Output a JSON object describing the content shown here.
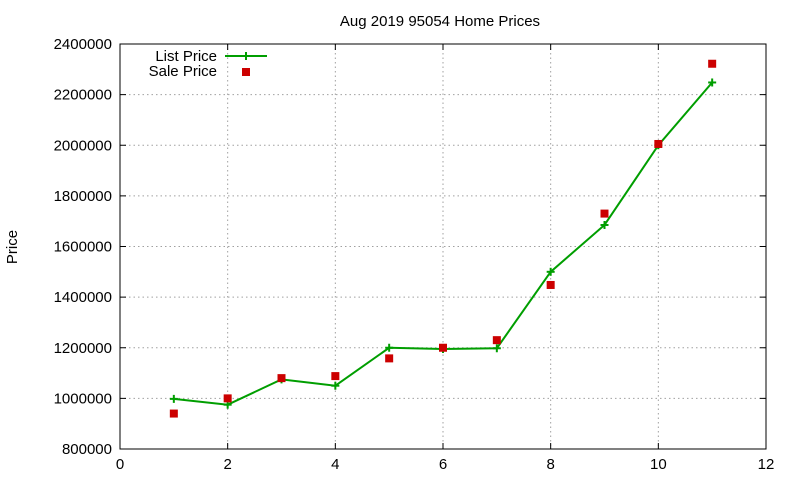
{
  "chart_data": {
    "type": "line",
    "title": "Aug 2019 95054 Home Prices",
    "xlabel": "",
    "ylabel": "Price",
    "xlim": [
      0,
      12
    ],
    "ylim": [
      800000,
      2400000
    ],
    "x_ticks": [
      "0",
      "2",
      "4",
      "6",
      "8",
      "10",
      "12"
    ],
    "y_ticks": [
      "800000",
      "1000000",
      "1200000",
      "1400000",
      "1600000",
      "1800000",
      "2000000",
      "2200000",
      "2400000"
    ],
    "grid": true,
    "legend_position": "top-left",
    "series": [
      {
        "name": "List Price",
        "style": "line-with-plus-markers",
        "color": "#009e00",
        "x": [
          1,
          2,
          3,
          4,
          5,
          6,
          7,
          8,
          9,
          10,
          11
        ],
        "y": [
          998000,
          975000,
          1075000,
          1050000,
          1200000,
          1195000,
          1198000,
          1500000,
          1685000,
          2000000,
          2248000
        ]
      },
      {
        "name": "Sale Price",
        "style": "square-markers",
        "color": "#cc0000",
        "x": [
          1,
          2,
          3,
          4,
          5,
          6,
          7,
          8,
          9,
          10,
          11
        ],
        "y": [
          940000,
          1000000,
          1080000,
          1088000,
          1158000,
          1200000,
          1230000,
          1448000,
          1730000,
          2005000,
          2322000
        ]
      }
    ]
  }
}
